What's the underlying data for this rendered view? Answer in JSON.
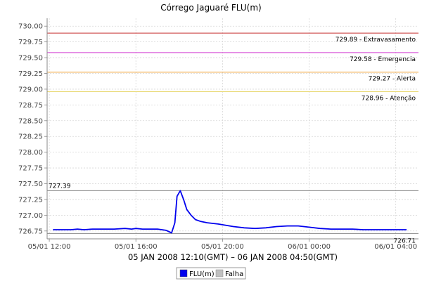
{
  "chart_data": {
    "type": "line",
    "title": "Córrego Jaguaré FLU(m)",
    "xlabel": "05 JAN 2008 12:10(GMT) – 06 JAN 2008 04:50(GMT)",
    "ylabel": "",
    "ylim": [
      726.625,
      730.125
    ],
    "yticks": [
      726.5,
      726.75,
      727.0,
      727.25,
      727.5,
      727.75,
      728.0,
      728.25,
      728.5,
      728.75,
      729.0,
      729.25,
      729.5,
      729.75,
      730.0
    ],
    "ytick_labels": [
      "726.50",
      "726.75",
      "727.00",
      "727.25",
      "727.50",
      "727.75",
      "728.00",
      "728.25",
      "728.50",
      "728.75",
      "729.00",
      "729.25",
      "729.50",
      "729.75",
      "730.00"
    ],
    "xlim_hours": [
      11.9,
      29.05
    ],
    "xticks_hours": [
      12,
      16,
      20,
      24,
      28
    ],
    "xtick_labels": [
      "05/01 12:00",
      "05/01 16:00",
      "05/01 20:00",
      "06/01 00:00",
      "06/01 04:00"
    ],
    "grid": true,
    "series": [
      {
        "name": "FLU(m)",
        "color": "#0000ee",
        "x_hours": [
          12.17,
          13.0,
          13.3,
          13.6,
          14.0,
          15.0,
          15.5,
          15.8,
          16.0,
          16.3,
          16.7,
          17.0,
          17.4,
          17.65,
          17.8,
          17.9,
          18.05,
          18.2,
          18.35,
          18.55,
          18.75,
          19.0,
          19.3,
          19.8,
          20.5,
          21.0,
          21.5,
          22.0,
          22.5,
          23.0,
          23.5,
          24.0,
          24.5,
          25.0,
          26.0,
          26.5,
          27.0,
          28.0,
          28.5
        ],
        "values": [
          726.77,
          726.77,
          726.78,
          726.77,
          726.78,
          726.78,
          726.79,
          726.78,
          726.79,
          726.78,
          726.78,
          726.78,
          726.76,
          726.72,
          726.88,
          727.3,
          727.39,
          727.25,
          727.09,
          727.0,
          726.93,
          726.9,
          726.88,
          726.86,
          726.82,
          726.8,
          726.79,
          726.8,
          726.82,
          726.83,
          726.83,
          726.81,
          726.79,
          726.78,
          726.78,
          726.77,
          726.77,
          726.77,
          726.77
        ]
      }
    ],
    "reference_lines": [
      {
        "value": 729.89,
        "label": "729.89 - Extravasamento",
        "color": "#c83232"
      },
      {
        "value": 729.58,
        "label": "729.58 - Emergencia",
        "color": "#d23ed2"
      },
      {
        "value": 729.27,
        "label": "729.27 - Alerta",
        "color": "#f0a030"
      },
      {
        "value": 728.96,
        "label": "728.96 - Atenção",
        "color": "#e8d870"
      }
    ],
    "markers": [
      {
        "value": 727.39,
        "label": "727.39",
        "label_position": "left"
      },
      {
        "value": 726.71,
        "label": "726.71",
        "label_position": "right"
      }
    ],
    "legend": {
      "placement": "bottom",
      "items": [
        {
          "label": "FLU(m)",
          "color": "#0000ee"
        },
        {
          "label": "Falha",
          "color": "#c0c0c0"
        }
      ]
    }
  }
}
